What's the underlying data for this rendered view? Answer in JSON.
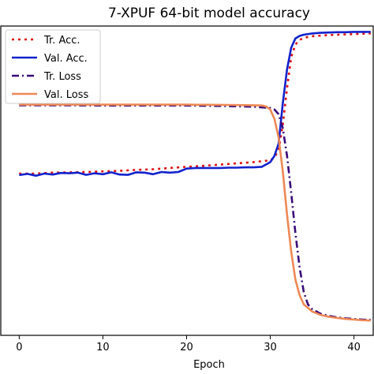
{
  "chart_data": {
    "type": "line",
    "title": "7-XPUF 64-bit model accuracy",
    "xlabel": "Epoch",
    "ylabel": "",
    "xlim": [
      -2.2,
      42.3
    ],
    "ylim": [
      0,
      1
    ],
    "xticks": [
      0,
      10,
      20,
      30,
      40
    ],
    "grid": false,
    "legend_position": "top-left",
    "series": [
      {
        "name": "Tr. Acc.",
        "color": "#dd1111",
        "style": "dotted",
        "x": [
          0,
          2,
          4,
          6,
          8,
          10,
          12,
          14,
          16,
          18,
          20,
          22,
          24,
          26,
          28,
          29,
          30,
          30.5,
          31,
          31.5,
          32,
          32.5,
          33,
          33.5,
          34,
          35,
          36,
          37,
          38,
          39,
          40,
          41,
          42
        ],
        "y": [
          0.523,
          0.523,
          0.526,
          0.527,
          0.528,
          0.53,
          0.532,
          0.535,
          0.537,
          0.541,
          0.545,
          0.548,
          0.552,
          0.556,
          0.56,
          0.563,
          0.566,
          0.575,
          0.6,
          0.68,
          0.8,
          0.9,
          0.94,
          0.955,
          0.962,
          0.967,
          0.969,
          0.971,
          0.972,
          0.973,
          0.974,
          0.975,
          0.976
        ]
      },
      {
        "name": "Val. Acc.",
        "color": "#1122cc",
        "style": "solid",
        "x": [
          0,
          1,
          2,
          3,
          4,
          5,
          6,
          7,
          8,
          9,
          10,
          11,
          12,
          13,
          14,
          15,
          16,
          17,
          18,
          19,
          20,
          21,
          22,
          23,
          24,
          25,
          26,
          27,
          28,
          29,
          30,
          30.5,
          31,
          31.5,
          32,
          32.5,
          33,
          33.5,
          34,
          35,
          36,
          37,
          38,
          39,
          40,
          41,
          42
        ],
        "y": [
          0.518,
          0.522,
          0.516,
          0.523,
          0.52,
          0.525,
          0.524,
          0.526,
          0.519,
          0.524,
          0.521,
          0.527,
          0.52,
          0.519,
          0.527,
          0.526,
          0.521,
          0.528,
          0.526,
          0.528,
          0.539,
          0.541,
          0.541,
          0.541,
          0.541,
          0.542,
          0.542,
          0.543,
          0.543,
          0.545,
          0.56,
          0.58,
          0.62,
          0.75,
          0.86,
          0.93,
          0.96,
          0.968,
          0.972,
          0.976,
          0.978,
          0.979,
          0.98,
          0.98,
          0.981,
          0.981,
          0.981
        ]
      },
      {
        "name": "Tr. Loss",
        "color": "#3a0a7a",
        "style": "dashdot",
        "x": [
          0,
          5,
          10,
          15,
          20,
          25,
          28,
          29,
          30,
          30.5,
          31,
          31.5,
          32,
          32.5,
          33,
          33.5,
          34,
          34.5,
          35,
          36,
          37,
          38,
          39,
          40,
          41,
          42
        ],
        "y": [
          0.744,
          0.744,
          0.743,
          0.743,
          0.743,
          0.741,
          0.739,
          0.737,
          0.735,
          0.73,
          0.715,
          0.67,
          0.58,
          0.46,
          0.33,
          0.22,
          0.14,
          0.1,
          0.085,
          0.07,
          0.063,
          0.058,
          0.055,
          0.053,
          0.051,
          0.05
        ]
      },
      {
        "name": "Val. Loss",
        "color": "#ee8855",
        "style": "solid",
        "x": [
          0,
          5,
          10,
          15,
          20,
          25,
          28,
          29,
          29.5,
          30,
          30.5,
          31,
          31.5,
          32,
          32.5,
          33,
          33.5,
          34,
          35,
          36,
          37,
          38,
          39,
          40,
          41,
          42
        ],
        "y": [
          0.746,
          0.746,
          0.746,
          0.746,
          0.746,
          0.745,
          0.744,
          0.743,
          0.74,
          0.73,
          0.7,
          0.64,
          0.53,
          0.39,
          0.27,
          0.18,
          0.13,
          0.1,
          0.077,
          0.066,
          0.06,
          0.056,
          0.053,
          0.051,
          0.049,
          0.048
        ]
      }
    ]
  }
}
